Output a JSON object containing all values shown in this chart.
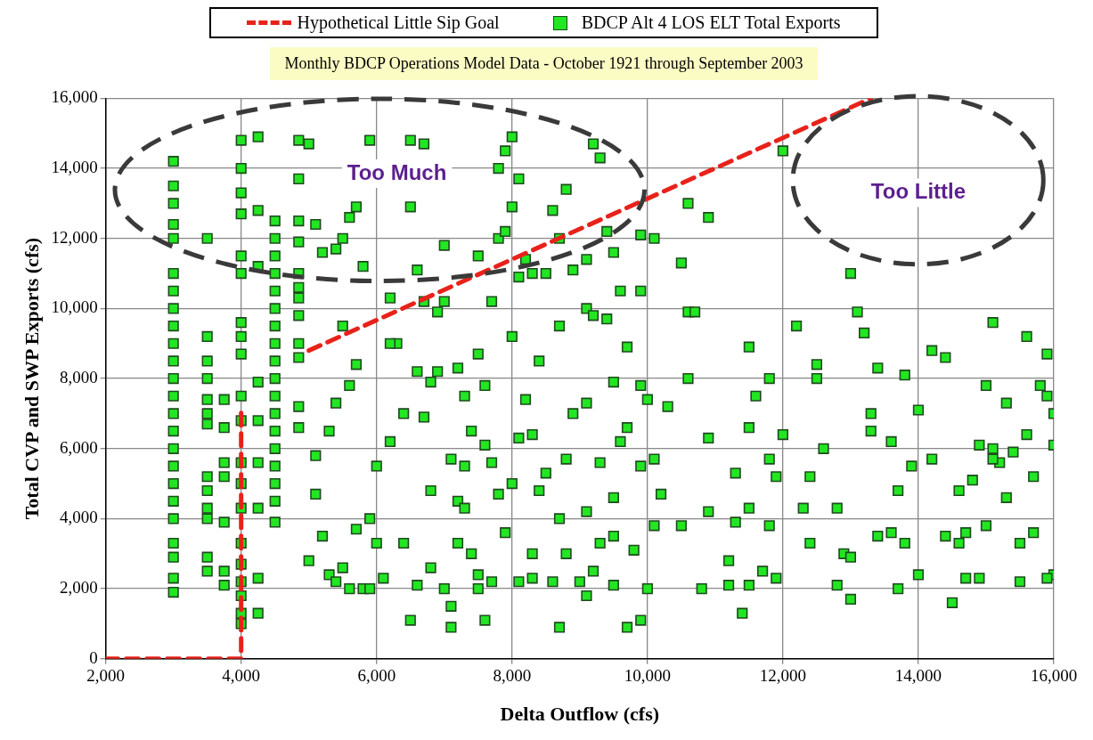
{
  "chart_data": {
    "type": "scatter",
    "subtitle": "Monthly BDCP Operations Model Data - October 1921 through September 2003",
    "xlabel": "Delta Outflow (cfs)",
    "ylabel": "Total CVP and SWP Exports (cfs)",
    "xlim": [
      2000,
      16000
    ],
    "ylim": [
      0,
      16000
    ],
    "xticks": [
      {
        "value": 2000,
        "label": "2,000"
      },
      {
        "value": 4000,
        "label": "4,000"
      },
      {
        "value": 6000,
        "label": "6,000"
      },
      {
        "value": 8000,
        "label": "8,000"
      },
      {
        "value": 10000,
        "label": "10,000"
      },
      {
        "value": 12000,
        "label": "12,000"
      },
      {
        "value": 14000,
        "label": "14,000"
      },
      {
        "value": 16000,
        "label": "16,000"
      }
    ],
    "yticks": [
      0,
      {
        "value": 2000,
        "label": "2,000"
      },
      {
        "value": 4000,
        "label": "4,000"
      },
      {
        "value": 6000,
        "label": "6,000"
      },
      {
        "value": 8000,
        "label": "8,000"
      },
      {
        "value": 10000,
        "label": "10,000"
      },
      {
        "value": 12000,
        "label": "12,000"
      },
      {
        "value": 14000,
        "label": "14,000"
      },
      {
        "value": 16000,
        "label": "16,000"
      }
    ],
    "grid": true,
    "legend": "top",
    "annotations": [
      "Too Much",
      "Too Little"
    ],
    "series": [
      {
        "name": "Hypothetical Little Sip Goal",
        "type": "line",
        "color": "#e8221a",
        "line_style": "dashed",
        "marker": "none",
        "x": [
          2000,
          4000,
          4000,
          4500,
          5000,
          13300
        ],
        "values": [
          0,
          0,
          7200,
          null,
          8800,
          16000
        ]
      },
      {
        "name": "BDCP Alt 4 LOS ELT Total Exports",
        "type": "scatter",
        "color": "#22e622",
        "marker": "square",
        "x": [
          3000,
          3000,
          3000,
          3000,
          3000,
          3000,
          3000,
          3000,
          3000,
          3000,
          3000,
          3000,
          3000,
          3000,
          3000,
          3000,
          3000,
          3000,
          3000,
          3000,
          3000,
          3000,
          3000,
          3000,
          3500,
          3500,
          3500,
          3500,
          3500,
          3500,
          3500,
          3500,
          3500,
          3500,
          3500,
          3500,
          3500,
          3750,
          3750,
          3750,
          3750,
          3750,
          3750,
          3750,
          4000,
          4000,
          4000,
          4000,
          4000,
          4000,
          4000,
          4000,
          4000,
          4000,
          4000,
          4000,
          4000,
          4000,
          4000,
          4000,
          4000,
          4000,
          4000,
          4000,
          4250,
          4250,
          4250,
          4250,
          4250,
          4250,
          4250,
          4250,
          4250,
          4500,
          4500,
          4500,
          4500,
          4500,
          4500,
          4500,
          4500,
          4500,
          4500,
          4500,
          4500,
          4500,
          4500,
          4500,
          4500,
          4500,
          4500,
          4850,
          4850,
          4850,
          4850,
          4850,
          4850,
          4850,
          4850,
          4850,
          4850,
          4850,
          4850,
          5100,
          5100,
          5000,
          5200,
          5300,
          5400,
          5500,
          5600,
          5700,
          5800,
          5900,
          5300,
          5400,
          5600,
          5700,
          5500,
          5200,
          5400,
          5600,
          5700,
          5900,
          5800,
          5000,
          5100,
          5500,
          6000,
          6000,
          5900,
          6100,
          6200,
          6300,
          6200,
          6500,
          6500,
          6600,
          6700,
          6400,
          6500,
          6600,
          6800,
          6800,
          6700,
          6800,
          6600,
          6900,
          6700,
          7000,
          6900,
          6400,
          6200,
          7000,
          7100,
          7100,
          7200,
          7200,
          7300,
          7400,
          7300,
          7200,
          7500,
          7600,
          7400,
          7500,
          7600,
          7700,
          7800,
          7600,
          7700,
          7500,
          7800,
          7800,
          7900,
          8000,
          7900,
          7000,
          7300,
          7100,
          7500,
          7900,
          7700,
          8000,
          8100,
          8200,
          8300,
          8000,
          8100,
          8200,
          8300,
          8100,
          8000,
          8500,
          8700,
          8800,
          8400,
          8300,
          8300,
          8600,
          8700,
          8800,
          8700,
          8800,
          8900,
          8700,
          8900,
          8600,
          8500,
          8100,
          8400,
          9000,
          9100,
          9200,
          9300,
          9500,
          9500,
          9700,
          9800,
          9900,
          9100,
          9300,
          9500,
          9600,
          9700,
          9900,
          9100,
          9500,
          9900,
          9700,
          9100,
          9200,
          9400,
          9600,
          9900,
          9200,
          9300,
          9400,
          9500,
          9900,
          9100,
          10000,
          10100,
          10200,
          10100,
          10000,
          10300,
          10100,
          10500,
          10600,
          10600,
          10700,
          10600,
          10500,
          10800,
          10900,
          10900,
          10900,
          11200,
          11200,
          11300,
          11300,
          11400,
          11500,
          11500,
          11500,
          11600,
          11500,
          11700,
          11800,
          11800,
          11800,
          11900,
          11900,
          12000,
          12000,
          12200,
          12300,
          12400,
          12400,
          12500,
          12500,
          12600,
          12800,
          12800,
          12900,
          13000,
          13000,
          13000,
          13100,
          13200,
          13300,
          13300,
          13400,
          13400,
          13600,
          13600,
          13700,
          13700,
          13800,
          13900,
          14000,
          14000,
          13800,
          14200,
          14200,
          14400,
          14400,
          14500,
          14600,
          14600,
          14700,
          14800,
          14900,
          14900,
          15000,
          15000,
          14700,
          15100,
          15100,
          15200,
          15300,
          15300,
          15500,
          15500,
          15600,
          15600,
          15700,
          15700,
          15800,
          15900,
          15900,
          16000,
          16000,
          16000,
          15900,
          15100,
          15400
        ],
        "values": [
          1900,
          2300,
          2900,
          3300,
          4000,
          4500,
          5000,
          5500,
          6000,
          6500,
          7000,
          7500,
          8000,
          8500,
          9000,
          9500,
          10000,
          10500,
          11000,
          12000,
          12400,
          13000,
          13500,
          14200,
          2900,
          2500,
          4000,
          4300,
          4800,
          5200,
          6700,
          7000,
          7400,
          8000,
          8500,
          9200,
          12000,
          2100,
          2500,
          3900,
          5200,
          5600,
          6600,
          7400,
          1000,
          1300,
          1800,
          2200,
          2700,
          3300,
          4300,
          5000,
          5600,
          6800,
          7500,
          8700,
          9200,
          9600,
          11000,
          11500,
          12700,
          13300,
          14000,
          14800,
          1300,
          2300,
          4300,
          5600,
          6800,
          7900,
          11200,
          12800,
          14900,
          3900,
          4500,
          5000,
          5500,
          6000,
          6500,
          7000,
          7500,
          8000,
          8500,
          9000,
          9500,
          10000,
          10500,
          11000,
          11500,
          12000,
          12500,
          6600,
          7200,
          8600,
          9000,
          9800,
          10300,
          10600,
          11000,
          11900,
          12500,
          14800,
          13700,
          4700,
          5800,
          2800,
          3500,
          2400,
          2200,
          2600,
          2000,
          3700,
          2000,
          4000,
          6500,
          7300,
          7800,
          8400,
          9500,
          11600,
          11700,
          12600,
          12900,
          14800,
          11200,
          14700,
          12400,
          12000,
          5500,
          3300,
          2000,
          2300,
          6200,
          9000,
          10300,
          14800,
          12900,
          11100,
          14700,
          3300,
          1100,
          2100,
          2600,
          4800,
          6900,
          7900,
          8200,
          9900,
          10200,
          11800,
          8200,
          7000,
          9000,
          2000,
          1500,
          900,
          3300,
          4500,
          5500,
          6500,
          7500,
          8300,
          8700,
          7800,
          3000,
          2400,
          1100,
          5600,
          4700,
          6100,
          10200,
          11500,
          12000,
          14000,
          14500,
          14900,
          12200,
          10200,
          4300,
          5700,
          2000,
          3600,
          2200,
          5000,
          6300,
          7400,
          6400,
          9200,
          10900,
          11400,
          11000,
          13700,
          12900,
          11000,
          12000,
          13400,
          8500,
          3000,
          2300,
          2200,
          900,
          3000,
          4000,
          5700,
          7000,
          9500,
          11100,
          12800,
          5300,
          2200,
          4800,
          2200,
          1800,
          2500,
          3300,
          3500,
          2100,
          900,
          3100,
          1100,
          4200,
          5600,
          4600,
          6200,
          6600,
          5500,
          7300,
          7900,
          7800,
          8900,
          10000,
          9800,
          9700,
          10500,
          10500,
          14700,
          14300,
          12200,
          11600,
          12100,
          11400,
          2000,
          3800,
          4700,
          5700,
          7400,
          7200,
          12000,
          11300,
          13000,
          9900,
          9900,
          8000,
          3800,
          2000,
          4200,
          12600,
          6300,
          2800,
          2100,
          5300,
          3900,
          1300,
          2100,
          4300,
          6600,
          7500,
          8900,
          2500,
          3800,
          5700,
          8000,
          2300,
          5200,
          14500,
          6400,
          9500,
          4300,
          3300,
          5200,
          8000,
          8400,
          6000,
          2100,
          4300,
          3000,
          2900,
          1700,
          11000,
          9900,
          9300,
          7000,
          6500,
          8300,
          3500,
          3600,
          6200,
          4800,
          2000,
          8100,
          5500,
          2400,
          7100,
          3300,
          8800,
          5700,
          8600,
          3500,
          1600,
          4800,
          3300,
          2300,
          5100,
          6100,
          2300,
          3800,
          7800,
          3600,
          9600,
          6000,
          5600,
          4600,
          7300,
          2200,
          3300,
          9200,
          6400,
          3600,
          5200,
          7800,
          8700,
          7500,
          7000,
          6100,
          2400,
          2300,
          5700,
          5900
        ]
      }
    ]
  }
}
